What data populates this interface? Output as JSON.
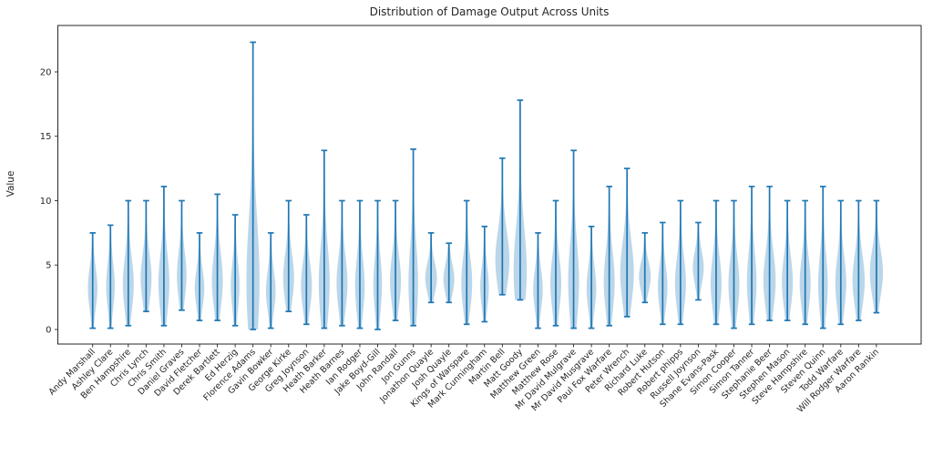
{
  "chart_data": {
    "type": "violin",
    "title": "Distribution of Damage Output Across Units",
    "xlabel": "",
    "ylabel": "Value",
    "ylim": [
      -1.13,
      23.6
    ],
    "yticks": [
      0,
      5,
      10,
      15,
      20
    ],
    "grid": false,
    "legend": "none",
    "colors": {
      "violin_fill": "#1f77b4",
      "violin_fill_opacity": 0.3,
      "range_line": "#1f77b4",
      "axis": "#262626"
    },
    "units": [
      {
        "name": "Andy Marshall",
        "min": 0.1,
        "max": 7.5,
        "peak": 3.2,
        "spread": 0.62
      },
      {
        "name": "Ashley Clare",
        "min": 0.1,
        "max": 8.1,
        "peak": 3.4,
        "spread": 0.55
      },
      {
        "name": "Ben Hampshire",
        "min": 0.3,
        "max": 10.0,
        "peak": 3.5,
        "spread": 0.72
      },
      {
        "name": "Chris Lynch",
        "min": 1.4,
        "max": 10.0,
        "peak": 4.0,
        "spread": 0.72
      },
      {
        "name": "Chris Smith",
        "min": 0.3,
        "max": 11.1,
        "peak": 3.6,
        "spread": 0.72
      },
      {
        "name": "Daniel Graves",
        "min": 1.5,
        "max": 10.0,
        "peak": 4.2,
        "spread": 0.62
      },
      {
        "name": "David Fletcher",
        "min": 0.7,
        "max": 7.5,
        "peak": 3.2,
        "spread": 0.62
      },
      {
        "name": "Derek Bartlett",
        "min": 0.7,
        "max": 10.5,
        "peak": 3.8,
        "spread": 0.72
      },
      {
        "name": "Ed Herzig",
        "min": 0.3,
        "max": 8.9,
        "peak": 3.4,
        "spread": 0.55
      },
      {
        "name": "Florence Adams",
        "min": 0.0,
        "max": 22.3,
        "peak": 3.8,
        "spread": 0.88
      },
      {
        "name": "Gavin Bowker",
        "min": 0.1,
        "max": 7.5,
        "peak": 3.0,
        "spread": 0.62
      },
      {
        "name": "George Kirke",
        "min": 1.4,
        "max": 10.0,
        "peak": 4.0,
        "spread": 0.72
      },
      {
        "name": "Greg Joynson",
        "min": 0.4,
        "max": 8.9,
        "peak": 3.4,
        "spread": 0.72
      },
      {
        "name": "Heath Barker",
        "min": 0.1,
        "max": 13.9,
        "peak": 3.6,
        "spread": 0.72
      },
      {
        "name": "Heath Barnes",
        "min": 0.3,
        "max": 10.0,
        "peak": 3.6,
        "spread": 0.72
      },
      {
        "name": "Ian Rodger",
        "min": 0.1,
        "max": 10.0,
        "peak": 3.4,
        "spread": 0.62
      },
      {
        "name": "Jake Boyd-Gill",
        "min": 0.0,
        "max": 10.0,
        "peak": 3.5,
        "spread": 0.55
      },
      {
        "name": "John Randall",
        "min": 0.7,
        "max": 10.0,
        "peak": 3.8,
        "spread": 0.72
      },
      {
        "name": "Jon Gunns",
        "min": 0.3,
        "max": 14.0,
        "peak": 3.6,
        "spread": 0.62
      },
      {
        "name": "Jonathon Quayle",
        "min": 2.1,
        "max": 7.5,
        "peak": 4.0,
        "spread": 0.78
      },
      {
        "name": "Josh Quayle",
        "min": 2.1,
        "max": 6.7,
        "peak": 3.9,
        "spread": 0.72
      },
      {
        "name": "Kings of Warspare",
        "min": 0.4,
        "max": 10.0,
        "peak": 3.6,
        "spread": 0.72
      },
      {
        "name": "Mark Cunningham",
        "min": 0.6,
        "max": 8.0,
        "peak": 3.3,
        "spread": 0.55
      },
      {
        "name": "Martin Bell",
        "min": 2.7,
        "max": 13.3,
        "peak": 5.4,
        "spread": 0.95
      },
      {
        "name": "Matt Goody",
        "min": 2.3,
        "max": 17.8,
        "peak": 4.6,
        "spread": 0.88
      },
      {
        "name": "Matthew Green",
        "min": 0.1,
        "max": 7.5,
        "peak": 3.1,
        "spread": 0.62
      },
      {
        "name": "Matthew Rose",
        "min": 0.3,
        "max": 10.0,
        "peak": 3.6,
        "spread": 0.72
      },
      {
        "name": "Mr David Mulgrave",
        "min": 0.1,
        "max": 13.9,
        "peak": 3.7,
        "spread": 0.72
      },
      {
        "name": "Mr David Musgrave",
        "min": 0.1,
        "max": 8.0,
        "peak": 3.2,
        "spread": 0.62
      },
      {
        "name": "Paul Fox Warfare",
        "min": 0.3,
        "max": 11.1,
        "peak": 3.7,
        "spread": 0.72
      },
      {
        "name": "Peter Wrench",
        "min": 1.0,
        "max": 12.5,
        "peak": 4.4,
        "spread": 0.92
      },
      {
        "name": "Richard Luke",
        "min": 2.1,
        "max": 7.5,
        "peak": 4.1,
        "spread": 0.78
      },
      {
        "name": "Robert Hutson",
        "min": 0.4,
        "max": 8.3,
        "peak": 3.3,
        "spread": 0.62
      },
      {
        "name": "Robert phipps",
        "min": 0.4,
        "max": 10.0,
        "peak": 3.6,
        "spread": 0.72
      },
      {
        "name": "Russell Joynson",
        "min": 2.3,
        "max": 8.3,
        "peak": 4.8,
        "spread": 0.72
      },
      {
        "name": "Shane Evans-Pask",
        "min": 0.4,
        "max": 10.0,
        "peak": 3.6,
        "spread": 0.72
      },
      {
        "name": "Simon Cooper",
        "min": 0.1,
        "max": 10.0,
        "peak": 3.5,
        "spread": 0.72
      },
      {
        "name": "Simon Tanner",
        "min": 0.4,
        "max": 11.1,
        "peak": 3.7,
        "spread": 0.62
      },
      {
        "name": "Stephanie Beer",
        "min": 0.7,
        "max": 11.1,
        "peak": 3.8,
        "spread": 0.82
      },
      {
        "name": "Stephen Mason",
        "min": 0.7,
        "max": 10.0,
        "peak": 3.7,
        "spread": 0.72
      },
      {
        "name": "Steve Hampshire",
        "min": 0.4,
        "max": 10.0,
        "peak": 3.6,
        "spread": 0.72
      },
      {
        "name": "Steven Quinn",
        "min": 0.1,
        "max": 11.1,
        "peak": 3.5,
        "spread": 0.62
      },
      {
        "name": "Todd Warfare",
        "min": 0.4,
        "max": 10.0,
        "peak": 3.6,
        "spread": 0.72
      },
      {
        "name": "Will Rodger Warfare",
        "min": 0.7,
        "max": 10.0,
        "peak": 3.8,
        "spread": 0.82
      },
      {
        "name": "Aaron Rankin",
        "min": 1.3,
        "max": 10.0,
        "peak": 4.4,
        "spread": 0.88
      }
    ]
  }
}
